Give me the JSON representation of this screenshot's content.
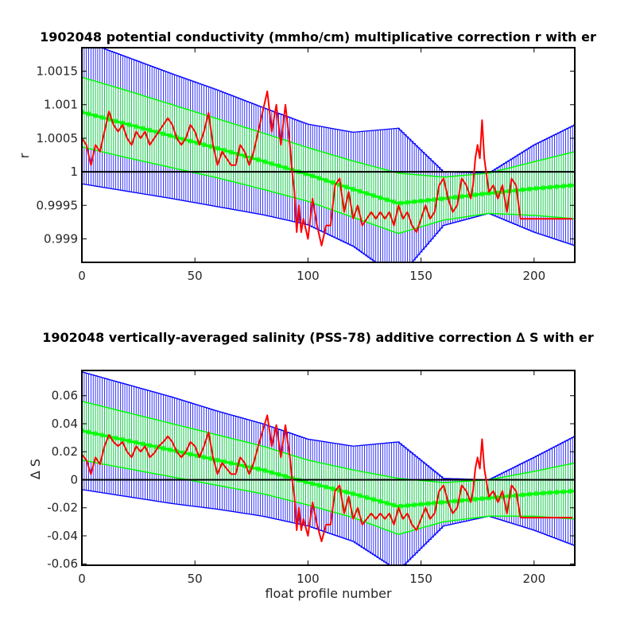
{
  "chart_data": [
    {
      "type": "line",
      "title": "1902048 potential conductivity (mmho/cm) multiplicative correction r with er",
      "xlabel": "",
      "ylabel": "r",
      "xlim": [
        0,
        218
      ],
      "ylim": [
        0.99865,
        1.00185
      ],
      "x_ticks": [
        0,
        50,
        100,
        150,
        200
      ],
      "x_tick_labels": [
        "0",
        "50",
        "100",
        "150",
        "200"
      ],
      "y_ticks": [
        0.999,
        0.9995,
        1,
        1.0005,
        1.001,
        1.0015
      ],
      "y_tick_labels": [
        "0.999",
        "0.9995",
        "1",
        "1.0005",
        "1.001",
        "1.0015"
      ],
      "grid": false,
      "legend": "none",
      "reference_line": 1,
      "colors": {
        "red": "#ff0000",
        "green": "#00ff00",
        "blue": "#0000ff",
        "black": "#000000"
      },
      "series": [
        {
          "role": "fit_with_errorbars",
          "color": "#00ff00",
          "x": [
            0,
            20,
            40,
            60,
            80,
            100,
            120,
            140,
            160,
            180,
            200,
            218
          ],
          "y": [
            1.00089,
            1.00071,
            1.00053,
            1.00035,
            1.00016,
            0.99996,
            0.99974,
            0.99953,
            0.9996,
            0.99968,
            0.99975,
            0.9998
          ],
          "err": [
            0.00052,
            0.0005,
            0.00047,
            0.00044,
            0.00042,
            0.0004,
            0.00042,
            0.00045,
            0.00032,
            0.0003,
            0.0004,
            0.0005
          ]
        },
        {
          "role": "outer_errorbars",
          "color": "#0000ff",
          "x": [
            0,
            20,
            40,
            60,
            80,
            100,
            120,
            140,
            160,
            180,
            200,
            218
          ],
          "y": [
            1.00089,
            1.00071,
            1.00053,
            1.00035,
            1.00016,
            0.99996,
            0.99974,
            0.99953,
            0.9996,
            0.99968,
            0.99975,
            0.9998
          ],
          "err": [
            0.00107,
            0.001,
            0.00093,
            0.00087,
            0.0008,
            0.00075,
            0.00085,
            0.00112,
            0.0004,
            0.0003,
            0.00065,
            0.0009
          ]
        },
        {
          "role": "data",
          "color": "#ff0000",
          "x": [
            0,
            2,
            4,
            6,
            8,
            10,
            12,
            14,
            16,
            18,
            20,
            22,
            24,
            26,
            28,
            30,
            32,
            34,
            36,
            38,
            40,
            42,
            44,
            46,
            48,
            50,
            52,
            54,
            56,
            58,
            60,
            62,
            64,
            66,
            68,
            70,
            72,
            74,
            76,
            78,
            80,
            82,
            84,
            86,
            88,
            90,
            92,
            93,
            94,
            95,
            96,
            97,
            98,
            100,
            102,
            104,
            106,
            108,
            110,
            112,
            114,
            116,
            118,
            120,
            122,
            124,
            126,
            128,
            130,
            132,
            134,
            136,
            138,
            140,
            142,
            144,
            146,
            148,
            150,
            152,
            154,
            156,
            158,
            160,
            162,
            164,
            166,
            168,
            170,
            172,
            173,
            174,
            175,
            176,
            177,
            178,
            180,
            182,
            184,
            186,
            188,
            190,
            192,
            194,
            200,
            210,
            217
          ],
          "y": [
            1.0005,
            1.0004,
            1.0001,
            1.0004,
            1.0003,
            1.0006,
            1.0009,
            1.0007,
            1.0006,
            1.0007,
            1.0005,
            1.0004,
            1.0006,
            1.0005,
            1.0006,
            1.0004,
            1.0005,
            1.0006,
            1.0007,
            1.0008,
            1.0007,
            1.0005,
            1.0004,
            1.0005,
            1.0007,
            1.0006,
            1.0004,
            1.0006,
            1.00088,
            1.0004,
            1.0001,
            1.0003,
            1.0002,
            1.0001,
            1.0001,
            1.0004,
            1.0003,
            1.0001,
            1.0003,
            1.0006,
            1.0009,
            1.0012,
            1.0006,
            1.001,
            1.0004,
            1.001,
            1.0004,
            1.0,
            0.9997,
            0.9991,
            0.9995,
            0.9991,
            0.9993,
            0.999,
            0.9996,
            0.9992,
            0.9989,
            0.9992,
            0.9992,
            0.9998,
            0.9999,
            0.9994,
            0.9997,
            0.9993,
            0.9995,
            0.9992,
            0.9993,
            0.9994,
            0.9993,
            0.9994,
            0.9993,
            0.9994,
            0.9992,
            0.9995,
            0.9993,
            0.9994,
            0.9992,
            0.9991,
            0.9993,
            0.9995,
            0.9993,
            0.9994,
            0.9998,
            0.9999,
            0.9996,
            0.9994,
            0.9995,
            0.9999,
            0.9998,
            0.9996,
            0.9998,
            1.0002,
            1.0004,
            1.0002,
            1.00077,
            1.0002,
            0.9997,
            0.9998,
            0.9996,
            0.9998,
            0.9994,
            0.9999,
            0.9998,
            0.9993,
            0.9993,
            0.9993,
            0.9993
          ]
        }
      ]
    },
    {
      "type": "line",
      "title": "1902048 vertically-averaged salinity (PSS-78) additive correction ∆ S with er",
      "xlabel": "float profile number",
      "ylabel": "∆ S",
      "xlim": [
        0,
        218
      ],
      "ylim": [
        -0.061,
        0.078
      ],
      "x_ticks": [
        0,
        50,
        100,
        150,
        200
      ],
      "x_tick_labels": [
        "0",
        "50",
        "100",
        "150",
        "200"
      ],
      "y_ticks": [
        -0.06,
        -0.04,
        -0.02,
        0,
        0.02,
        0.04,
        0.06
      ],
      "y_tick_labels": [
        "-0.06",
        "-0.04",
        "-0.02",
        "0",
        "0.02",
        "0.04",
        "0.06"
      ],
      "grid": false,
      "legend": "none",
      "reference_line": 0,
      "colors": {
        "red": "#ff0000",
        "green": "#00ff00",
        "blue": "#0000ff",
        "black": "#000000"
      },
      "series": [
        {
          "role": "fit_with_errorbars",
          "color": "#00ff00",
          "x": [
            0,
            20,
            40,
            60,
            80,
            100,
            120,
            140,
            160,
            180,
            200,
            218
          ],
          "y": [
            0.035,
            0.028,
            0.021,
            0.014,
            0.007,
            -0.002,
            -0.01,
            -0.019,
            -0.016,
            -0.013,
            -0.01,
            -0.008
          ],
          "err": [
            0.021,
            0.02,
            0.019,
            0.018,
            0.017,
            0.016,
            0.017,
            0.02,
            0.014,
            0.013,
            0.016,
            0.02
          ]
        },
        {
          "role": "outer_errorbars",
          "color": "#0000ff",
          "x": [
            0,
            20,
            40,
            60,
            80,
            100,
            120,
            140,
            160,
            180,
            200,
            218
          ],
          "y": [
            0.035,
            0.028,
            0.021,
            0.014,
            0.007,
            -0.002,
            -0.01,
            -0.019,
            -0.016,
            -0.013,
            -0.01,
            -0.008
          ],
          "err": [
            0.042,
            0.04,
            0.038,
            0.035,
            0.033,
            0.031,
            0.034,
            0.046,
            0.017,
            0.013,
            0.026,
            0.039
          ]
        },
        {
          "role": "data",
          "color": "#ff0000",
          "x": [
            0,
            2,
            4,
            6,
            8,
            10,
            12,
            14,
            16,
            18,
            20,
            22,
            24,
            26,
            28,
            30,
            32,
            34,
            36,
            38,
            40,
            42,
            44,
            46,
            48,
            50,
            52,
            54,
            56,
            58,
            60,
            62,
            64,
            66,
            68,
            70,
            72,
            74,
            76,
            78,
            80,
            82,
            84,
            86,
            88,
            90,
            92,
            93,
            94,
            95,
            96,
            97,
            98,
            100,
            102,
            104,
            106,
            108,
            110,
            112,
            114,
            116,
            118,
            120,
            122,
            124,
            126,
            128,
            130,
            132,
            134,
            136,
            138,
            140,
            142,
            144,
            146,
            148,
            150,
            152,
            154,
            156,
            158,
            160,
            162,
            164,
            166,
            168,
            170,
            172,
            173,
            174,
            175,
            176,
            177,
            178,
            180,
            182,
            184,
            186,
            188,
            190,
            192,
            194,
            200,
            210,
            217
          ],
          "y": [
            0.018,
            0.014,
            0.004,
            0.016,
            0.011,
            0.024,
            0.032,
            0.027,
            0.024,
            0.027,
            0.02,
            0.016,
            0.024,
            0.02,
            0.024,
            0.016,
            0.019,
            0.024,
            0.027,
            0.031,
            0.027,
            0.02,
            0.016,
            0.02,
            0.027,
            0.024,
            0.016,
            0.024,
            0.034,
            0.016,
            0.004,
            0.012,
            0.008,
            0.004,
            0.004,
            0.016,
            0.012,
            0.004,
            0.012,
            0.024,
            0.035,
            0.046,
            0.024,
            0.039,
            0.016,
            0.039,
            0.016,
            0.0,
            -0.012,
            -0.036,
            -0.02,
            -0.036,
            -0.028,
            -0.04,
            -0.016,
            -0.032,
            -0.044,
            -0.032,
            -0.032,
            -0.008,
            -0.004,
            -0.024,
            -0.012,
            -0.028,
            -0.02,
            -0.032,
            -0.028,
            -0.024,
            -0.028,
            -0.024,
            -0.028,
            -0.024,
            -0.032,
            -0.02,
            -0.028,
            -0.024,
            -0.032,
            -0.036,
            -0.028,
            -0.02,
            -0.028,
            -0.024,
            -0.008,
            -0.004,
            -0.016,
            -0.024,
            -0.02,
            -0.004,
            -0.008,
            -0.016,
            -0.008,
            0.008,
            0.016,
            0.008,
            0.029,
            0.008,
            -0.012,
            -0.008,
            -0.016,
            -0.008,
            -0.024,
            -0.004,
            -0.008,
            -0.027,
            -0.027,
            -0.027,
            -0.027
          ]
        }
      ]
    }
  ]
}
